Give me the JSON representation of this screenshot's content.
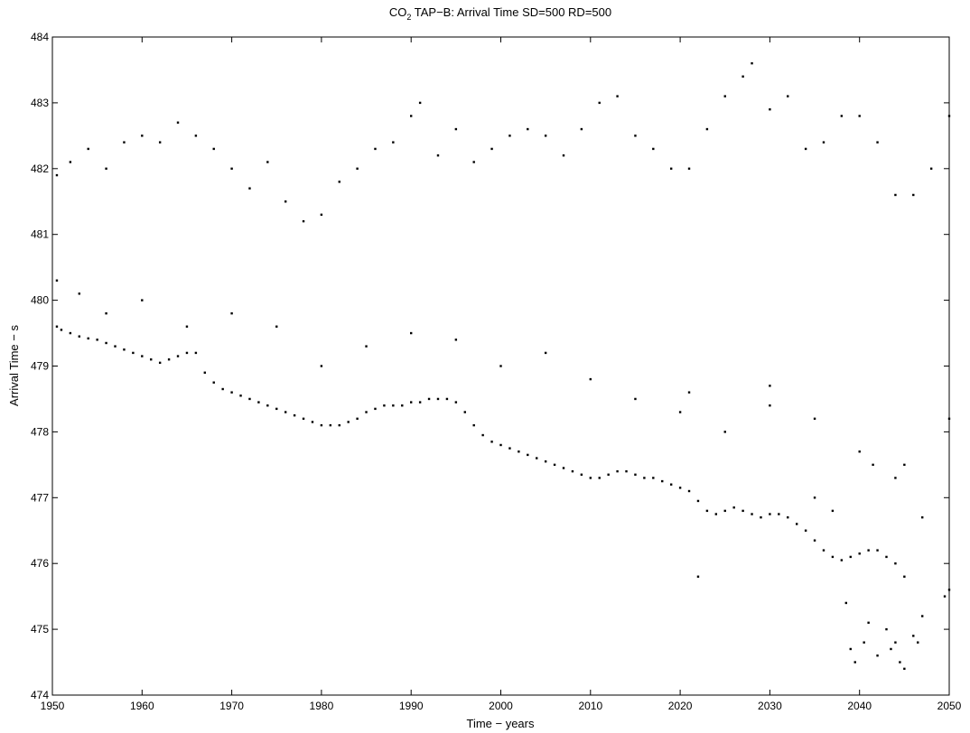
{
  "chart_data": {
    "type": "scatter",
    "title_main": "CO",
    "title_sub": "2",
    "title_rest": " TAP−B: Arrival Time  SD=500 RD=500",
    "xlabel": "Time − years",
    "ylabel": "Arrival Time − s",
    "xlim": [
      1950,
      2050
    ],
    "ylim": [
      474,
      484
    ],
    "xticks": [
      1950,
      1960,
      1970,
      1980,
      1990,
      2000,
      2010,
      2020,
      2030,
      2040,
      2050
    ],
    "yticks": [
      474,
      475,
      476,
      477,
      478,
      479,
      480,
      481,
      482,
      483,
      484
    ],
    "grid": false,
    "marker_color": "#000000",
    "points": [
      [
        1950.5,
        479.6
      ],
      [
        1951.0,
        479.55
      ],
      [
        1952.0,
        479.5
      ],
      [
        1953.0,
        479.45
      ],
      [
        1954.0,
        479.42
      ],
      [
        1955.0,
        479.4
      ],
      [
        1956.0,
        479.35
      ],
      [
        1957.0,
        479.3
      ],
      [
        1958.0,
        479.25
      ],
      [
        1959.0,
        479.2
      ],
      [
        1960.0,
        479.15
      ],
      [
        1961.0,
        479.1
      ],
      [
        1962.0,
        479.05
      ],
      [
        1963.0,
        479.1
      ],
      [
        1964.0,
        479.15
      ],
      [
        1965.0,
        479.2
      ],
      [
        1966.0,
        479.2
      ],
      [
        1967.0,
        478.9
      ],
      [
        1968.0,
        478.75
      ],
      [
        1969.0,
        478.65
      ],
      [
        1970.0,
        478.6
      ],
      [
        1971.0,
        478.55
      ],
      [
        1972.0,
        478.5
      ],
      [
        1973.0,
        478.45
      ],
      [
        1974.0,
        478.4
      ],
      [
        1975.0,
        478.35
      ],
      [
        1976.0,
        478.3
      ],
      [
        1977.0,
        478.25
      ],
      [
        1978.0,
        478.2
      ],
      [
        1979.0,
        478.15
      ],
      [
        1980.0,
        478.1
      ],
      [
        1981.0,
        478.1
      ],
      [
        1982.0,
        478.1
      ],
      [
        1983.0,
        478.15
      ],
      [
        1984.0,
        478.2
      ],
      [
        1985.0,
        478.3
      ],
      [
        1986.0,
        478.35
      ],
      [
        1987.0,
        478.4
      ],
      [
        1988.0,
        478.4
      ],
      [
        1989.0,
        478.4
      ],
      [
        1990.0,
        478.45
      ],
      [
        1991.0,
        478.45
      ],
      [
        1992.0,
        478.5
      ],
      [
        1993.0,
        478.5
      ],
      [
        1994.0,
        478.5
      ],
      [
        1995.0,
        478.45
      ],
      [
        1996.0,
        478.3
      ],
      [
        1997.0,
        478.1
      ],
      [
        1998.0,
        477.95
      ],
      [
        1999.0,
        477.85
      ],
      [
        2000.0,
        477.8
      ],
      [
        2001.0,
        477.75
      ],
      [
        2002.0,
        477.7
      ],
      [
        2003.0,
        477.65
      ],
      [
        2004.0,
        477.6
      ],
      [
        2005.0,
        477.55
      ],
      [
        2006.0,
        477.5
      ],
      [
        2007.0,
        477.45
      ],
      [
        2008.0,
        477.4
      ],
      [
        2009.0,
        477.35
      ],
      [
        2010.0,
        477.3
      ],
      [
        2011.0,
        477.3
      ],
      [
        2012.0,
        477.35
      ],
      [
        2013.0,
        477.4
      ],
      [
        2014.0,
        477.4
      ],
      [
        2015.0,
        477.35
      ],
      [
        2016.0,
        477.3
      ],
      [
        2017.0,
        477.3
      ],
      [
        2018.0,
        477.25
      ],
      [
        2019.0,
        477.2
      ],
      [
        2020.0,
        477.15
      ],
      [
        2021.0,
        477.1
      ],
      [
        2022.0,
        476.95
      ],
      [
        2023.0,
        476.8
      ],
      [
        2024.0,
        476.75
      ],
      [
        2025.0,
        476.8
      ],
      [
        2026.0,
        476.85
      ],
      [
        2027.0,
        476.8
      ],
      [
        2028.0,
        476.75
      ],
      [
        2029.0,
        476.7
      ],
      [
        2030.0,
        476.75
      ],
      [
        2031.0,
        476.75
      ],
      [
        2032.0,
        476.7
      ],
      [
        2033.0,
        476.6
      ],
      [
        2034.0,
        476.5
      ],
      [
        2035.0,
        476.35
      ],
      [
        2036.0,
        476.2
      ],
      [
        2037.0,
        476.1
      ],
      [
        2038.0,
        476.05
      ],
      [
        2039.0,
        476.1
      ],
      [
        2040.0,
        476.15
      ],
      [
        2041.0,
        476.2
      ],
      [
        2042.0,
        476.2
      ],
      [
        2043.0,
        476.1
      ],
      [
        2044.0,
        476.0
      ],
      [
        2045.0,
        475.8
      ],
      [
        1950.5,
        481.9
      ],
      [
        1952.0,
        482.1
      ],
      [
        1954.0,
        482.3
      ],
      [
        1956.0,
        482.0
      ],
      [
        1958.0,
        482.4
      ],
      [
        1960.0,
        482.5
      ],
      [
        1962.0,
        482.4
      ],
      [
        1964.0,
        482.7
      ],
      [
        1966.0,
        482.5
      ],
      [
        1968.0,
        482.3
      ],
      [
        1970.0,
        482.0
      ],
      [
        1972.0,
        481.7
      ],
      [
        1974.0,
        482.1
      ],
      [
        1976.0,
        481.5
      ],
      [
        1978.0,
        481.2
      ],
      [
        1980.0,
        481.3
      ],
      [
        1982.0,
        481.8
      ],
      [
        1984.0,
        482.0
      ],
      [
        1986.0,
        482.3
      ],
      [
        1988.0,
        482.4
      ],
      [
        1990.0,
        482.8
      ],
      [
        1991.0,
        483.0
      ],
      [
        1993.0,
        482.2
      ],
      [
        1995.0,
        482.6
      ],
      [
        1997.0,
        482.1
      ],
      [
        1999.0,
        482.3
      ],
      [
        2001.0,
        482.5
      ],
      [
        2003.0,
        482.6
      ],
      [
        2005.0,
        482.5
      ],
      [
        2007.0,
        482.2
      ],
      [
        2009.0,
        482.6
      ],
      [
        2011.0,
        483.0
      ],
      [
        2013.0,
        483.1
      ],
      [
        2015.0,
        482.5
      ],
      [
        2017.0,
        482.3
      ],
      [
        2019.0,
        482.0
      ],
      [
        2021.0,
        482.0
      ],
      [
        2023.0,
        482.6
      ],
      [
        2025.0,
        483.1
      ],
      [
        2027.0,
        483.4
      ],
      [
        2028.0,
        483.6
      ],
      [
        2030.0,
        482.9
      ],
      [
        2032.0,
        483.1
      ],
      [
        2034.0,
        482.3
      ],
      [
        2036.0,
        482.4
      ],
      [
        2038.0,
        482.8
      ],
      [
        2040.0,
        482.8
      ],
      [
        2042.0,
        482.4
      ],
      [
        2044.0,
        481.6
      ],
      [
        2046.0,
        481.6
      ],
      [
        2048.0,
        482.0
      ],
      [
        2050.0,
        482.8
      ],
      [
        1950.5,
        480.3
      ],
      [
        1953.0,
        480.1
      ],
      [
        1956.0,
        479.8
      ],
      [
        1960.0,
        480.0
      ],
      [
        1965.0,
        479.6
      ],
      [
        1970.0,
        479.8
      ],
      [
        1975.0,
        479.6
      ],
      [
        1980.0,
        479.0
      ],
      [
        1985.0,
        479.3
      ],
      [
        1990.0,
        479.5
      ],
      [
        1995.0,
        479.4
      ],
      [
        2000.0,
        479.0
      ],
      [
        2005.0,
        479.2
      ],
      [
        2010.0,
        478.8
      ],
      [
        2015.0,
        478.5
      ],
      [
        2020.0,
        478.3
      ],
      [
        2025.0,
        478.0
      ],
      [
        2030.0,
        478.4
      ],
      [
        2035.0,
        478.2
      ],
      [
        2040.0,
        477.7
      ],
      [
        2045.0,
        477.5
      ],
      [
        2050.0,
        478.2
      ],
      [
        2038.5,
        475.4
      ],
      [
        2039.0,
        474.7
      ],
      [
        2039.5,
        474.5
      ],
      [
        2040.5,
        474.8
      ],
      [
        2041.0,
        475.1
      ],
      [
        2042.0,
        474.6
      ],
      [
        2043.0,
        475.0
      ],
      [
        2043.5,
        474.7
      ],
      [
        2044.0,
        474.8
      ],
      [
        2044.5,
        474.5
      ],
      [
        2045.0,
        474.4
      ],
      [
        2046.0,
        474.9
      ],
      [
        2046.5,
        474.8
      ],
      [
        2047.0,
        475.2
      ],
      [
        2049.5,
        475.5
      ],
      [
        2050.0,
        475.6
      ],
      [
        2047.0,
        476.7
      ],
      [
        2022.0,
        475.8
      ],
      [
        2030.0,
        478.7
      ],
      [
        2021.0,
        478.6
      ],
      [
        2035.0,
        477.0
      ],
      [
        2037.0,
        476.8
      ],
      [
        2041.5,
        477.5
      ],
      [
        2044.0,
        477.3
      ]
    ]
  }
}
